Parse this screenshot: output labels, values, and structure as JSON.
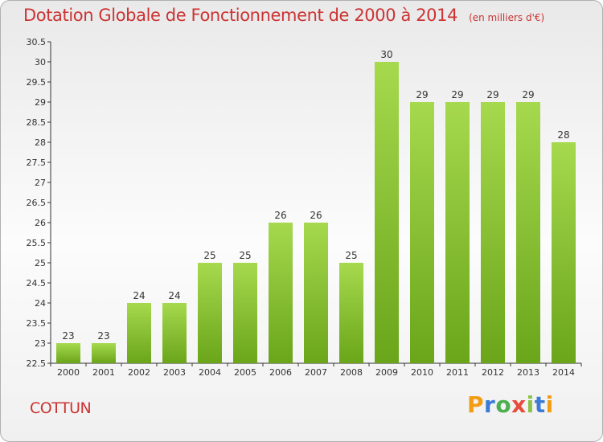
{
  "header": {
    "title": "Dotation Globale de Fonctionnement de 2000 à 2014",
    "unit_note": "(en milliers d'€)"
  },
  "footer": {
    "commune": "COTTUN",
    "logo_text": [
      "P",
      "r",
      "o",
      "x",
      "i",
      "t",
      "i"
    ],
    "logo_colors": [
      "#f39c12",
      "#3a7bd5",
      "#4caf50",
      "#e74c3c",
      "#8bc34a",
      "#3a7bd5",
      "#f39c12"
    ]
  },
  "chart_data": {
    "type": "bar",
    "title": "Dotation Globale de Fonctionnement de 2000 à 2014",
    "xlabel": "",
    "ylabel": "",
    "categories": [
      "2000",
      "2001",
      "2002",
      "2003",
      "2004",
      "2005",
      "2006",
      "2007",
      "2008",
      "2009",
      "2010",
      "2011",
      "2012",
      "2013",
      "2014"
    ],
    "values": [
      23,
      23,
      24,
      24,
      25,
      25,
      26,
      26,
      25,
      30,
      29,
      29,
      29,
      29,
      28
    ],
    "ylim": [
      22.5,
      30.5
    ],
    "yticks": [
      "22.5",
      "23",
      "23.5",
      "24",
      "24.5",
      "25",
      "25.5",
      "26",
      "26.5",
      "27",
      "27.5",
      "28",
      "28.5",
      "29",
      "29.5",
      "30",
      "30.5"
    ],
    "bar_color_top": "#a6d94e",
    "bar_color_bottom": "#6aa51a",
    "axis_color": "#333333",
    "grid": false
  }
}
